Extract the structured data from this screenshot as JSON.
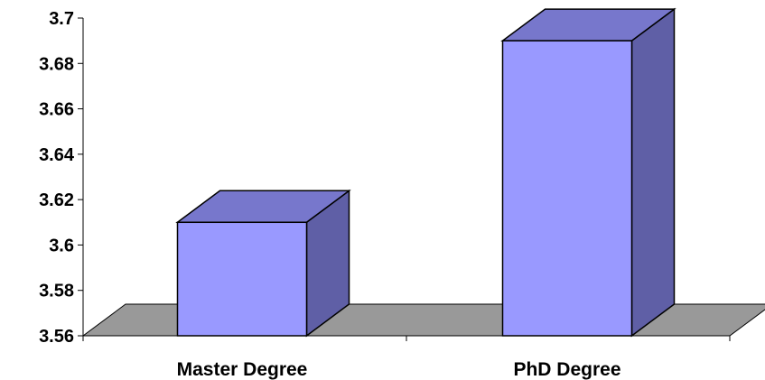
{
  "chart_data": {
    "type": "bar",
    "categories": [
      "Master Degree",
      "PhD Degree"
    ],
    "values": [
      3.61,
      3.69
    ],
    "ylim": [
      3.56,
      3.7
    ],
    "yticks": [
      3.56,
      3.58,
      3.6,
      3.62,
      3.64,
      3.66,
      3.68,
      3.7
    ],
    "ytick_labels": [
      "3.56",
      "3.58",
      "3.6",
      "3.62",
      "3.64",
      "3.66",
      "3.68",
      "3.7"
    ],
    "title": "",
    "xlabel": "",
    "ylabel": "",
    "grid": false,
    "legend": false,
    "style": "3d"
  },
  "colors": {
    "bar_front": "#9999ff",
    "bar_top": "#7777cc",
    "bar_side": "#5f5fa6",
    "floor": "#999999",
    "outline": "#000000"
  }
}
